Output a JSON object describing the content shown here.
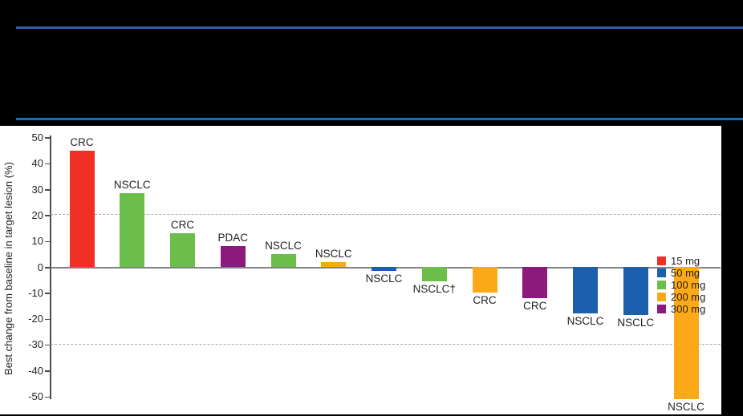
{
  "header": {
    "rule_top_color": "#2F5DA9",
    "rule_bottom_color": "#0C70C5",
    "band_background": "#000000"
  },
  "chart_data": {
    "type": "bar",
    "subtype": "waterfall",
    "title": "",
    "xlabel": "",
    "ylabel": "Best change from baseline in target lesion (%)",
    "ylim": [
      -55,
      52
    ],
    "yticks": [
      50,
      40,
      30,
      20,
      10,
      0,
      -10,
      -20,
      -30,
      -40,
      -50
    ],
    "ytick_labels": [
      "50",
      "40",
      "30",
      "20",
      "10",
      "0",
      "-10",
      "-20",
      "-30",
      "-40",
      "-50"
    ],
    "reference_lines": [
      20,
      -30
    ],
    "grid": "dashed-reference-only",
    "legend_position": "top-right",
    "legend": [
      {
        "label": "15 mg",
        "color": "#EE3124"
      },
      {
        "label": "50 mg",
        "color": "#1C5FAC"
      },
      {
        "label": "100 mg",
        "color": "#6CBE4B"
      },
      {
        "label": "200 mg",
        "color": "#FBA919"
      },
      {
        "label": "300 mg",
        "color": "#8C1A7C"
      }
    ],
    "bars": [
      {
        "label": "CRC",
        "dose": "15 mg",
        "value": 45
      },
      {
        "label": "NSCLC",
        "dose": "100 mg",
        "value": 28.5
      },
      {
        "label": "CRC",
        "dose": "100 mg",
        "value": 13
      },
      {
        "label": "PDAC",
        "dose": "300 mg",
        "value": 8
      },
      {
        "label": "NSCLC",
        "dose": "100 mg",
        "value": 5
      },
      {
        "label": "NSCLC",
        "dose": "200 mg",
        "value": 2
      },
      {
        "label": "NSCLC",
        "dose": "50 mg",
        "value": -1.5
      },
      {
        "label": "NSCLC†",
        "dose": "100 mg",
        "value": -5.5
      },
      {
        "label": "CRC",
        "dose": "200 mg",
        "value": -10
      },
      {
        "label": "CRC",
        "dose": "300 mg",
        "value": -12
      },
      {
        "label": "NSCLC",
        "dose": "50 mg",
        "value": -18
      },
      {
        "label": "NSCLC",
        "dose": "50 mg",
        "value": -18.5
      },
      {
        "label": "NSCLC",
        "dose": "200 mg",
        "value": -51
      }
    ]
  }
}
